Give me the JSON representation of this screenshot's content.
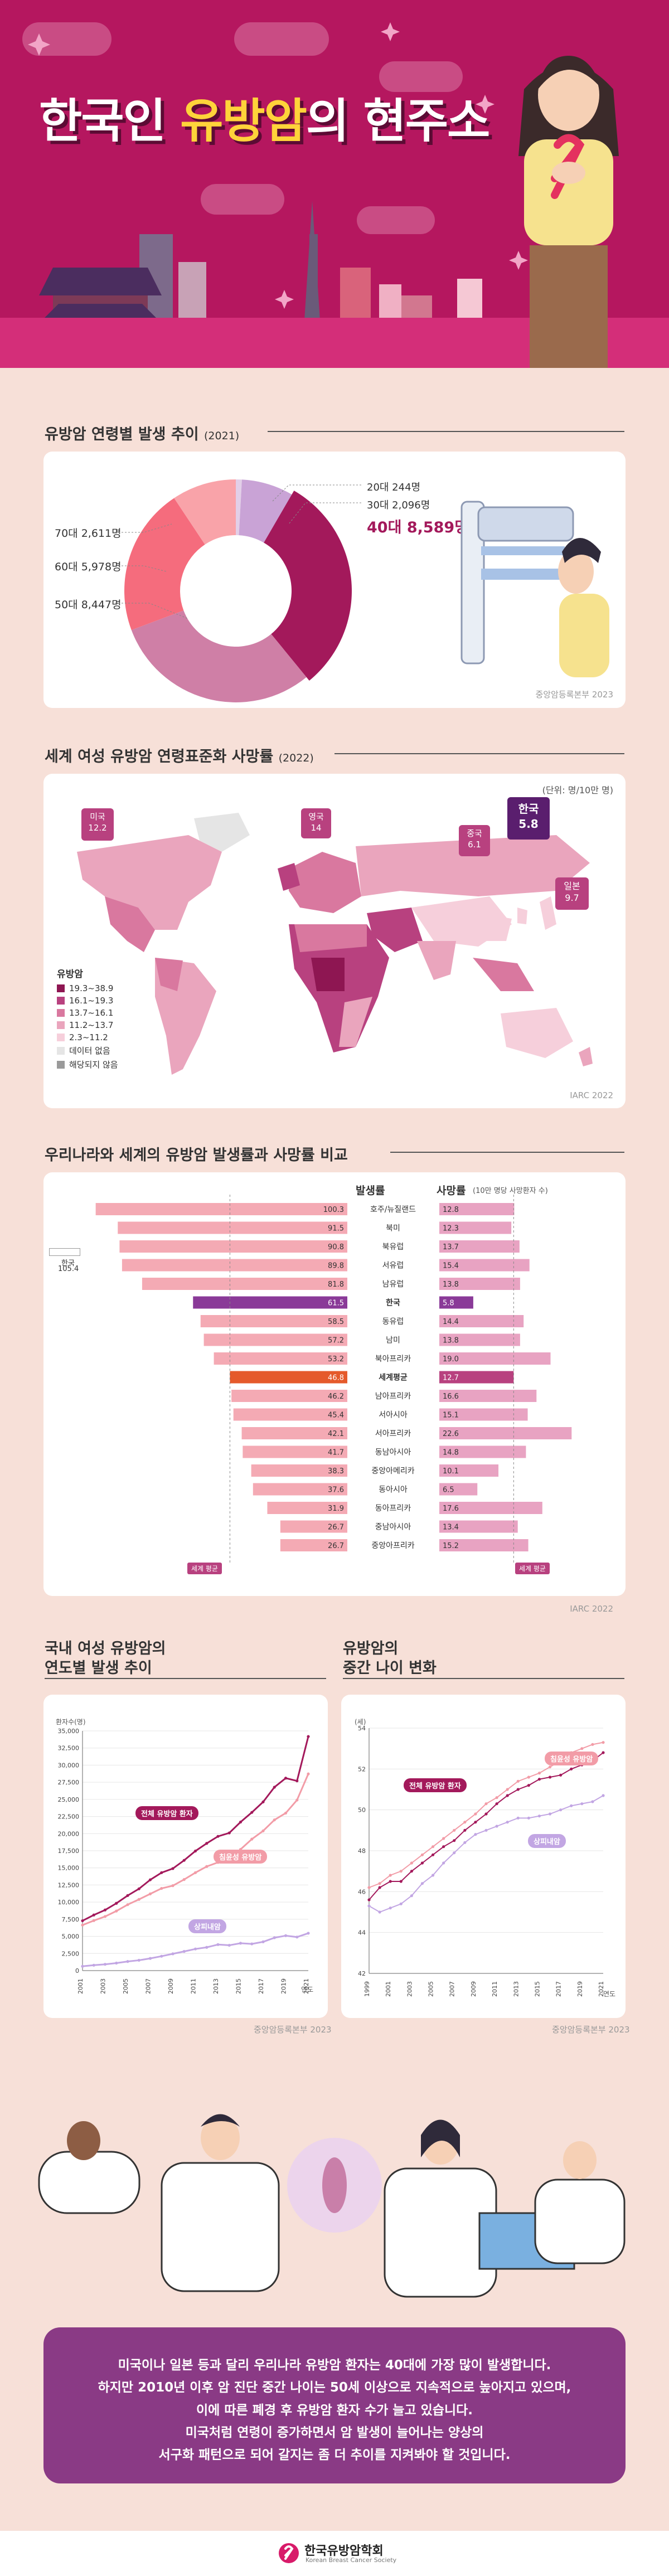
{
  "header": {
    "title_prefix": "한국인 ",
    "title_highlight": "유방암",
    "title_suffix": "의 현주소"
  },
  "section1": {
    "title": "유방암 연령별 발생 추이",
    "year": "(2021)",
    "source": "중앙암등록본부 2023",
    "labels": {
      "s20": "20대 244명",
      "s30": "30대 2,096명",
      "s40": "40대 8,589명",
      "s70": "70대 2,611명",
      "s60": "60대 5,978명",
      "s50": "50대 8,447명"
    }
  },
  "section2": {
    "title": "세계 여성 유방암 연령표준화 사망률",
    "year": "(2022)",
    "unit": "(단위: 명/10만 명)",
    "source": "IARC 2022",
    "callouts": [
      {
        "name": "미국",
        "value": "12.2"
      },
      {
        "name": "영국",
        "value": "14"
      },
      {
        "name": "중국",
        "value": "6.1"
      },
      {
        "name": "한국",
        "value": "5.8"
      },
      {
        "name": "일본",
        "value": "9.7"
      }
    ],
    "legend": {
      "title": "유방암",
      "items": [
        {
          "label": "19.3~38.9",
          "color": "#8e1652"
        },
        {
          "label": "16.1~19.3",
          "color": "#b8417f"
        },
        {
          "label": "13.7~16.1",
          "color": "#d9789f"
        },
        {
          "label": "11.2~13.7",
          "color": "#eaa5bd"
        },
        {
          "label": "2.3~11.2",
          "color": "#f6cfdb"
        },
        {
          "label": "데이터 없음",
          "color": "#e5e5e5"
        },
        {
          "label": "해당되지 않음",
          "color": "#9a9a9a"
        }
      ]
    }
  },
  "section3": {
    "title": "우리나라와 세계의 유방암 발생률과 사망률 비교",
    "incidence_header": "발생률",
    "mortality_header": "사망률",
    "mortality_unit": "(10만 명당 사망환자 수)",
    "korea_side": {
      "label": "한국",
      "value": "105.4"
    },
    "world_avg_label": "세계 평균",
    "source": "IARC 2022",
    "rows": [
      {
        "region": "호주/뉴질랜드",
        "inc": 100.3,
        "inc_text": "100.3",
        "mort": 12.8,
        "mort_text": "12.8"
      },
      {
        "region": "북미",
        "inc": 91.5,
        "inc_text": "91.5",
        "mort": 12.3,
        "mort_text": "12.3"
      },
      {
        "region": "북유럽",
        "inc": 90.8,
        "inc_text": "90.8",
        "mort": 13.7,
        "mort_text": "13.7"
      },
      {
        "region": "서유럽",
        "inc": 89.8,
        "inc_text": "89.8",
        "mort": 15.4,
        "mort_text": "15.4"
      },
      {
        "region": "남유럽",
        "inc": 81.8,
        "inc_text": "81.8",
        "mort": 13.8,
        "mort_text": "13.8"
      },
      {
        "region": "한국",
        "inc": 61.5,
        "inc_text": "61.5",
        "mort": 5.8,
        "mort_text": "5.8",
        "highlight": "korea"
      },
      {
        "region": "동유럽",
        "inc": 58.5,
        "inc_text": "58.5",
        "mort": 14.4,
        "mort_text": "14.4"
      },
      {
        "region": "남미",
        "inc": 57.2,
        "inc_text": "57.2",
        "mort": 13.8,
        "mort_text": "13.8"
      },
      {
        "region": "북아프리카",
        "inc": 53.2,
        "inc_text": "53.2",
        "mort": 19.0,
        "mort_text": "19.0"
      },
      {
        "region": "세계평균",
        "inc": 46.8,
        "inc_text": "46.8",
        "mort": 12.7,
        "mort_text": "12.7",
        "highlight": "world"
      },
      {
        "region": "남아프리카",
        "inc": 46.2,
        "inc_text": "46.2",
        "mort": 16.6,
        "mort_text": "16.6"
      },
      {
        "region": "서아시아",
        "inc": 45.4,
        "inc_text": "45.4",
        "mort": 15.1,
        "mort_text": "15.1"
      },
      {
        "region": "서아프리카",
        "inc": 42.1,
        "inc_text": "42.1",
        "mort": 22.6,
        "mort_text": "22.6"
      },
      {
        "region": "동남아시아",
        "inc": 41.7,
        "inc_text": "41.7",
        "mort": 14.8,
        "mort_text": "14.8"
      },
      {
        "region": "중앙아메리카",
        "inc": 38.3,
        "inc_text": "38.3",
        "mort": 10.1,
        "mort_text": "10.1"
      },
      {
        "region": "동아시아",
        "inc": 37.6,
        "inc_text": "37.6",
        "mort": 6.5,
        "mort_text": "6.5"
      },
      {
        "region": "동아프리카",
        "inc": 31.9,
        "inc_text": "31.9",
        "mort": 17.6,
        "mort_text": "17.6"
      },
      {
        "region": "중남아시아",
        "inc": 26.7,
        "inc_text": "26.7",
        "mort": 13.4,
        "mort_text": "13.4"
      },
      {
        "region": "중앙아프리카",
        "inc": 26.7,
        "inc_text": "26.7",
        "mort": 15.2,
        "mort_text": "15.2"
      }
    ]
  },
  "section4": {
    "title_line1": "국내 여성 유방암의",
    "title_line2": "연도별 발생 추이",
    "y_unit": "환자수(명)",
    "x_unit": "연도",
    "source": "중앙암등록본부 2023",
    "labels": {
      "total": "전체 유방암 환자",
      "invasive": "침윤성 유방암",
      "insitu": "상피내암"
    }
  },
  "section5": {
    "title_line1": "유방암의",
    "title_line2": "중간 나이 변화",
    "y_unit": "(세)",
    "x_unit": "연도",
    "source": "중앙암등록본부 2023",
    "labels": {
      "total": "전체 유방암 환자",
      "invasive": "침윤성 유방암",
      "insitu": "상피내암"
    }
  },
  "bottom": {
    "lines": [
      "미국이나 일본 등과 달리 우리나라 유방암 환자는 40대에 가장 많이 발생합니다.",
      "하지만 2010년 이후 암 진단 중간 나이는 50세 이상으로 지속적으로 높아지고 있으며,",
      "이에 따른 폐경 후 유방암 환자 수가 늘고 있습니다.",
      "미국처럼 연령이 증가하면서 암 발생이 늘어나는 양상의",
      "서구화 패턴으로 되어 갈지는 좀 더 추이를 지켜봐야 할 것입니다."
    ]
  },
  "footer": {
    "org": "한국유방암학회",
    "org_en": "Korean Breast Cancer Society"
  },
  "chart_data": [
    {
      "type": "pie",
      "title": "유방암 연령별 발생 추이 (2021)",
      "categories": [
        "20대",
        "30대",
        "40대",
        "50대",
        "60대",
        "70대"
      ],
      "values": [
        244,
        2096,
        8589,
        8447,
        5978,
        2611
      ],
      "colors": [
        "#e2cfe8",
        "#c9a3d6",
        "#a3195b",
        "#cf7fa6",
        "#f56c7d",
        "#f9a3a9"
      ]
    },
    {
      "type": "bar",
      "title": "우리나라와 세계의 유방암 발생률과 사망률 비교",
      "categories": [
        "호주/뉴질랜드",
        "북미",
        "북유럽",
        "서유럽",
        "남유럽",
        "한국",
        "동유럽",
        "남미",
        "북아프리카",
        "세계평균",
        "남아프리카",
        "서아시아",
        "서아프리카",
        "동남아시아",
        "중앙아메리카",
        "동아시아",
        "동아프리카",
        "중남아시아",
        "중앙아프리카"
      ],
      "series": [
        {
          "name": "발생률",
          "values": [
            100.3,
            91.5,
            90.8,
            89.8,
            81.8,
            61.5,
            58.5,
            57.2,
            53.2,
            46.8,
            46.2,
            45.4,
            42.1,
            41.7,
            38.3,
            37.6,
            31.9,
            26.7,
            26.7
          ]
        },
        {
          "name": "사망률",
          "values": [
            12.8,
            12.3,
            13.7,
            15.4,
            13.8,
            5.8,
            14.4,
            13.8,
            19.0,
            12.7,
            16.6,
            15.1,
            22.6,
            14.8,
            10.1,
            6.5,
            17.6,
            13.4,
            15.2
          ]
        }
      ]
    },
    {
      "type": "line",
      "title": "국내 여성 유방암의 연도별 발생 추이",
      "ylabel": "환자수(명)",
      "xlabel": "연도",
      "ylim": [
        0,
        35000
      ],
      "yticks": [
        0,
        2500,
        5000,
        7500,
        10000,
        12500,
        15000,
        17500,
        20000,
        22500,
        25000,
        27500,
        30000,
        32500,
        35000
      ],
      "ytick_labels": [
        "0",
        "2,500",
        "5,000",
        "7,500",
        "10,000",
        "12,500",
        "15,000",
        "17,500",
        "20,000",
        "22,500",
        "25,000",
        "27,500",
        "30,000",
        "32,500",
        "35,000"
      ],
      "x": [
        2001,
        2002,
        2003,
        2004,
        2005,
        2006,
        2007,
        2008,
        2009,
        2010,
        2011,
        2012,
        2013,
        2014,
        2015,
        2016,
        2017,
        2018,
        2019,
        2020,
        2021
      ],
      "xtick_labels": [
        "2001",
        "2003",
        "2005",
        "2007",
        "2009",
        "2011",
        "2013",
        "2015",
        "2017",
        "2019",
        "2021"
      ],
      "series": [
        {
          "name": "전체 유방암 환자",
          "color": "#a3195b",
          "values": [
            7280,
            8120,
            8850,
            9830,
            10960,
            11940,
            13260,
            14300,
            14900,
            16100,
            17460,
            18580,
            19600,
            20100,
            21690,
            23100,
            24630,
            26780,
            28100,
            27700,
            34180
          ]
        },
        {
          "name": "침윤성 유방암",
          "color": "#f29ca7",
          "values": [
            6650,
            7300,
            7900,
            8700,
            9630,
            10400,
            11200,
            12000,
            12400,
            13300,
            14300,
            15200,
            15800,
            16500,
            17700,
            19200,
            20400,
            22000,
            23000,
            24900,
            28720
          ]
        },
        {
          "name": "상피내암",
          "color": "#c2a6e3",
          "values": [
            630,
            790,
            920,
            1100,
            1330,
            1510,
            1780,
            2100,
            2450,
            2800,
            3160,
            3400,
            3800,
            3700,
            4000,
            3900,
            4200,
            4800,
            5100,
            4900,
            5460
          ]
        }
      ]
    },
    {
      "type": "line",
      "title": "유방암의 중간 나이 변화",
      "ylabel": "(세)",
      "xlabel": "연도",
      "ylim": [
        42,
        54
      ],
      "yticks": [
        42,
        44,
        46,
        48,
        50,
        52,
        54
      ],
      "x": [
        1999,
        2000,
        2001,
        2002,
        2003,
        2004,
        2005,
        2006,
        2007,
        2008,
        2009,
        2010,
        2011,
        2012,
        2013,
        2014,
        2015,
        2016,
        2017,
        2018,
        2019,
        2020,
        2021
      ],
      "xtick_labels": [
        "1999",
        "2001",
        "2003",
        "2005",
        "2007",
        "2009",
        "2011",
        "2013",
        "2015",
        "2017",
        "2019",
        "2021"
      ],
      "series": [
        {
          "name": "전체 유방암 환자",
          "color": "#a3195b",
          "values": [
            45.6,
            46.2,
            46.5,
            46.5,
            47.0,
            47.4,
            47.8,
            48.2,
            48.5,
            49.0,
            49.4,
            49.8,
            50.3,
            50.7,
            51.0,
            51.2,
            51.5,
            51.6,
            51.7,
            52.0,
            52.2,
            52.4,
            52.8
          ]
        },
        {
          "name": "침윤성 유방암",
          "color": "#f29ca7",
          "values": [
            46.2,
            46.4,
            46.8,
            47.0,
            47.4,
            47.8,
            48.2,
            48.6,
            49.0,
            49.4,
            49.8,
            50.3,
            50.6,
            51.0,
            51.4,
            51.6,
            51.8,
            52.1,
            52.4,
            52.8,
            53.0,
            53.2,
            53.3
          ]
        },
        {
          "name": "상피내암",
          "color": "#c2a6e3",
          "values": [
            45.3,
            45.0,
            45.2,
            45.4,
            45.8,
            46.4,
            46.8,
            47.4,
            47.9,
            48.4,
            48.8,
            49.0,
            49.2,
            49.4,
            49.6,
            49.6,
            49.7,
            49.8,
            50.0,
            50.2,
            50.3,
            50.4,
            50.7
          ]
        }
      ]
    }
  ]
}
